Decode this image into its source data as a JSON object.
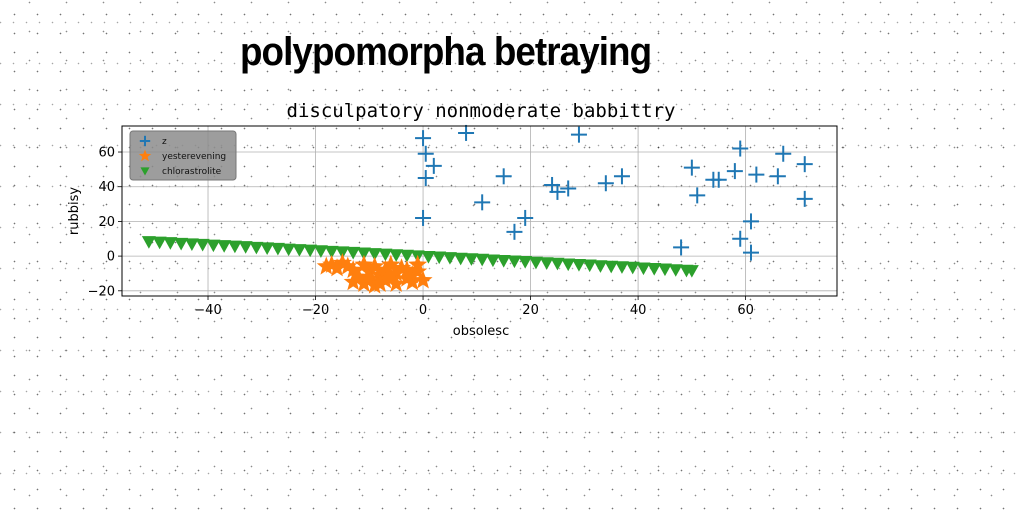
{
  "page_title": "polypomorpha betraying",
  "chart_data": {
    "type": "scatter",
    "title": "disculpatory nonmoderate babbittry",
    "xlabel": "obsolesc",
    "ylabel": "rubbisy",
    "xlim": [
      -56,
      77
    ],
    "ylim": [
      -23,
      75
    ],
    "xticks": [
      -40,
      -20,
      0,
      20,
      40,
      60
    ],
    "yticks": [
      -20,
      0,
      20,
      40,
      60
    ],
    "grid": true,
    "legend_position": "top-left",
    "series": [
      {
        "name": "z",
        "marker": "plus",
        "color": "#1f77b4",
        "points": [
          [
            0,
            68
          ],
          [
            8,
            71
          ],
          [
            29,
            70
          ],
          [
            0.5,
            59
          ],
          [
            2,
            52
          ],
          [
            0.5,
            45
          ],
          [
            0,
            22
          ],
          [
            11,
            31
          ],
          [
            15,
            46
          ],
          [
            17,
            14
          ],
          [
            19,
            22
          ],
          [
            24,
            41
          ],
          [
            25,
            37
          ],
          [
            27,
            39
          ],
          [
            34,
            42
          ],
          [
            37,
            46
          ],
          [
            48,
            5
          ],
          [
            50,
            51
          ],
          [
            51,
            35
          ],
          [
            54,
            44
          ],
          [
            55,
            44
          ],
          [
            58,
            49
          ],
          [
            59,
            62
          ],
          [
            59,
            10
          ],
          [
            61,
            20
          ],
          [
            61,
            2
          ],
          [
            62,
            47
          ],
          [
            66,
            46
          ],
          [
            67,
            59
          ],
          [
            71,
            53
          ],
          [
            71,
            33
          ]
        ]
      },
      {
        "name": "yesterevening",
        "marker": "star",
        "color": "#ff7f0e",
        "points": [
          [
            -18,
            -6
          ],
          [
            -17,
            -5
          ],
          [
            -16,
            -7
          ],
          [
            -15,
            -4
          ],
          [
            -14,
            -6
          ],
          [
            -13,
            -8
          ],
          [
            -13,
            -15
          ],
          [
            -12,
            -12
          ],
          [
            -11,
            -5
          ],
          [
            -11,
            -16
          ],
          [
            -10,
            -9
          ],
          [
            -10,
            -13
          ],
          [
            -9,
            -6
          ],
          [
            -9,
            -17
          ],
          [
            -8,
            -11
          ],
          [
            -7,
            -14
          ],
          [
            -7,
            -8
          ],
          [
            -6,
            -5
          ],
          [
            -6,
            -12
          ],
          [
            -5,
            -10
          ],
          [
            -5,
            -16
          ],
          [
            -4,
            -7
          ],
          [
            -3,
            -13
          ],
          [
            -3,
            -8
          ],
          [
            -2,
            -11
          ],
          [
            -2,
            -15
          ],
          [
            -1,
            -5
          ],
          [
            -1,
            -9
          ],
          [
            0,
            -14
          ],
          [
            -8,
            -16
          ]
        ]
      },
      {
        "name": "chlorastrolite",
        "marker": "triangle-down",
        "color": "#2ca02c",
        "points": [
          [
            -51,
            8.3
          ],
          [
            -49,
            8.0
          ],
          [
            -47,
            7.7
          ],
          [
            -45,
            7.3
          ],
          [
            -43,
            7.0
          ],
          [
            -41,
            6.7
          ],
          [
            -39,
            6.3
          ],
          [
            -37,
            6.0
          ],
          [
            -35,
            5.7
          ],
          [
            -33,
            5.4
          ],
          [
            -31,
            5.0
          ],
          [
            -29,
            4.7
          ],
          [
            -27,
            4.4
          ],
          [
            -25,
            4.0
          ],
          [
            -23,
            3.7
          ],
          [
            -21,
            3.4
          ],
          [
            -19,
            3.0
          ],
          [
            -17,
            2.7
          ],
          [
            -15,
            2.4
          ],
          [
            -13,
            2.1
          ],
          [
            -11,
            1.7
          ],
          [
            -9,
            1.4
          ],
          [
            -7,
            1.1
          ],
          [
            -5,
            0.7
          ],
          [
            -3,
            0.4
          ],
          [
            -1,
            0.1
          ],
          [
            1,
            -0.3
          ],
          [
            3,
            -0.6
          ],
          [
            5,
            -0.9
          ],
          [
            7,
            -1.3
          ],
          [
            9,
            -1.6
          ],
          [
            11,
            -1.9
          ],
          [
            13,
            -2.3
          ],
          [
            15,
            -2.6
          ],
          [
            17,
            -2.9
          ],
          [
            19,
            -3.2
          ],
          [
            21,
            -3.6
          ],
          [
            23,
            -3.9
          ],
          [
            25,
            -4.2
          ],
          [
            27,
            -4.6
          ],
          [
            29,
            -4.9
          ],
          [
            31,
            -5.2
          ],
          [
            33,
            -5.6
          ],
          [
            35,
            -5.9
          ],
          [
            37,
            -6.2
          ],
          [
            39,
            -6.5
          ],
          [
            41,
            -6.9
          ],
          [
            43,
            -7.2
          ],
          [
            45,
            -7.5
          ],
          [
            47,
            -7.9
          ],
          [
            49,
            -8.2
          ],
          [
            50,
            -8.4
          ]
        ]
      }
    ]
  }
}
